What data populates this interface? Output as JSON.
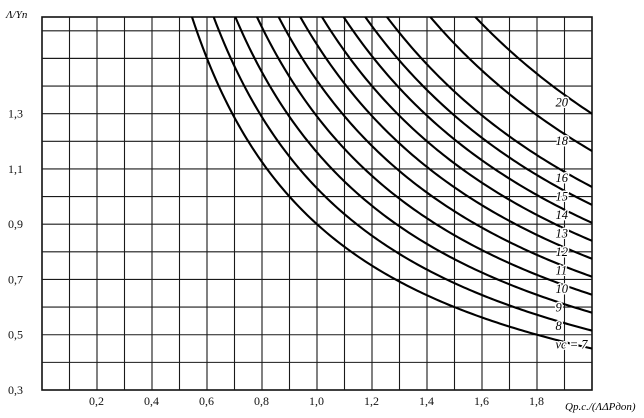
{
  "chart_data": {
    "type": "line",
    "title": "",
    "ylabel": "Λ/Yп",
    "xlabel": "Qр.с./(ΛΔPдоп)",
    "xlim": [
      0,
      2.0
    ],
    "ylim": [
      0.3,
      1.65
    ],
    "grid": true,
    "xticks": [
      "0,2",
      "0,4",
      "0,6",
      "0,8",
      "1,0",
      "1,2",
      "1,4",
      "1,6",
      "1,8"
    ],
    "yticks": [
      "0,3",
      "0,5",
      "0,7",
      "0,9",
      "1,1",
      "1,3"
    ],
    "curve_labels": [
      "vc = 7",
      "8",
      "9",
      "10",
      "11",
      "12",
      "13",
      "14",
      "15",
      "16",
      "18",
      "20"
    ],
    "series": [
      {
        "name": "vc = 7",
        "k": 0.9
      },
      {
        "name": "8",
        "k": 1.03
      },
      {
        "name": "9",
        "k": 1.16
      },
      {
        "name": "10",
        "k": 1.29
      },
      {
        "name": "11",
        "k": 1.42
      },
      {
        "name": "12",
        "k": 1.55
      },
      {
        "name": "13",
        "k": 1.68
      },
      {
        "name": "14",
        "k": 1.81
      },
      {
        "name": "15",
        "k": 1.94
      },
      {
        "name": "16",
        "k": 2.07
      },
      {
        "name": "18",
        "k": 2.33
      },
      {
        "name": "20",
        "k": 2.6
      }
    ],
    "relation": "y = k / x"
  }
}
